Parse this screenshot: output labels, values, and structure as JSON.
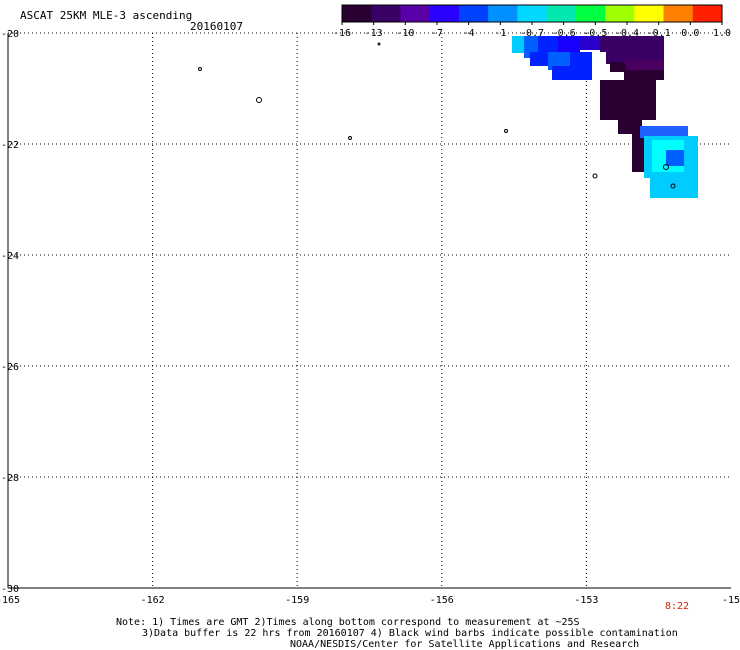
{
  "header": {
    "title": "ASCAT 25KM MLE-3 ascending",
    "date": "20160107"
  },
  "legend": {
    "tick_labels": [
      "-16",
      "-13",
      "-10",
      "-7",
      "-4",
      "-1",
      "-0.7",
      "-0.6",
      "-0.5",
      "-0.4",
      "-0.1",
      "0.0",
      "1.0"
    ],
    "colors": [
      "#2a0033",
      "#3a0066",
      "#5a00a8",
      "#2a00ff",
      "#0040ff",
      "#0090ff",
      "#00d8ff",
      "#00e8b0",
      "#00ff40",
      "#a0ff00",
      "#ffff00",
      "#ff8000",
      "#ff2000"
    ]
  },
  "map": {
    "x_ticks": [
      "-165",
      "-162",
      "-159",
      "-156",
      "-153",
      "-15"
    ],
    "y_ticks": [
      "-20",
      "-22",
      "-24",
      "-26",
      "-28",
      "-30"
    ],
    "time_label": "8:22",
    "time_color": "#cc2200",
    "grid": "dotted",
    "data_colors": {
      "dark_purple": "#2a0033",
      "purple": "#3a0066",
      "blue": "#0022ff",
      "mid_blue": "#0060ff",
      "cyan": "#00ccff",
      "light_cyan": "#00ffff"
    }
  },
  "notes": {
    "line1": "Note: 1) Times are GMT 2)Times along bottom correspond to measurement at ~25S",
    "line2": "3)Data buffer is 22 hrs from 20160107 4) Black wind barbs indicate possible contamination",
    "line3": "NOAA/NESDIS/Center for Satellite Applications and Research"
  }
}
